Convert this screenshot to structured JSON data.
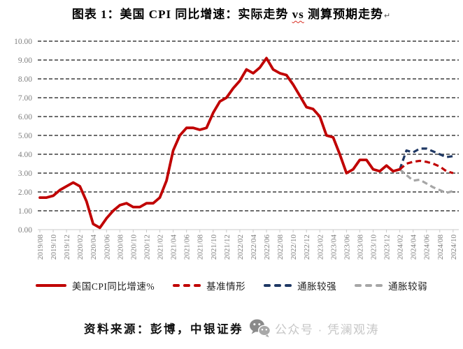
{
  "title": {
    "prefix": "图表 1：美国 CPI 同比增速：实际走势 ",
    "vs_word": "vs",
    "suffix": " 测算预期走势",
    "paragraph_mark": "↵"
  },
  "chart_data": {
    "type": "line",
    "x_start": "2019/08",
    "x_interval": "monthly",
    "x_ticks": [
      "2019/08",
      "2019/10",
      "2019/12",
      "2020/02",
      "2020/04",
      "2020/06",
      "2020/08",
      "2020/10",
      "2020/12",
      "2021/02",
      "2021/04",
      "2021/06",
      "2021/08",
      "2021/10",
      "2021/12",
      "2022/02",
      "2022/04",
      "2022/06",
      "2022/08",
      "2022/10",
      "2022/12",
      "2023/02",
      "2023/04",
      "2023/06",
      "2023/08",
      "2023/10",
      "2023/12",
      "2024/02",
      "2024/04",
      "2024/06",
      "2024/08",
      "2024/10"
    ],
    "y_ticks": [
      "0.00",
      "1.00",
      "2.00",
      "3.00",
      "4.00",
      "5.00",
      "6.00",
      "7.00",
      "8.00",
      "9.00",
      "10.00"
    ],
    "ylim": [
      0,
      10
    ],
    "grid": "dashed-horizontal",
    "series": [
      {
        "name": "美国CPI同比增速%",
        "color": "#c00000",
        "style": "solid",
        "start_month_index": 0,
        "values": [
          1.7,
          1.7,
          1.8,
          2.1,
          2.3,
          2.5,
          2.3,
          1.5,
          0.3,
          0.1,
          0.6,
          1.0,
          1.3,
          1.4,
          1.2,
          1.2,
          1.4,
          1.4,
          1.7,
          2.6,
          4.2,
          5.0,
          5.4,
          5.4,
          5.3,
          5.4,
          6.2,
          6.8,
          7.0,
          7.5,
          7.9,
          8.5,
          8.3,
          8.6,
          9.1,
          8.5,
          8.3,
          8.2,
          7.7,
          7.1,
          6.5,
          6.4,
          6.0,
          5.0,
          4.9,
          4.0,
          3.0,
          3.2,
          3.7,
          3.7,
          3.2,
          3.1,
          3.4,
          3.1,
          3.2
        ]
      },
      {
        "name": "基准情形",
        "color": "#c00000",
        "style": "dashed",
        "start_month_index": 54,
        "values": [
          3.2,
          3.5,
          3.6,
          3.65,
          3.6,
          3.5,
          3.35,
          3.1,
          3.0
        ]
      },
      {
        "name": "通胀较强",
        "color": "#1f3864",
        "style": "dashed",
        "start_month_index": 54,
        "values": [
          3.2,
          4.2,
          4.1,
          4.3,
          4.3,
          4.15,
          4.0,
          3.85,
          3.9
        ]
      },
      {
        "name": "通胀较弱",
        "color": "#a6a6a6",
        "style": "dashed",
        "start_month_index": 54,
        "values": [
          3.2,
          2.9,
          2.6,
          2.65,
          2.45,
          2.25,
          2.1,
          1.95,
          2.05
        ]
      }
    ]
  },
  "legend": {
    "items": [
      {
        "label": "美国CPI同比增速%",
        "color": "#c00000",
        "style": "solid"
      },
      {
        "label": "基准情形",
        "color": "#c00000",
        "style": "dashed"
      },
      {
        "label": "通胀较强",
        "color": "#1f3864",
        "style": "dashed"
      },
      {
        "label": "通胀较弱",
        "color": "#a6a6a6",
        "style": "dashed"
      }
    ]
  },
  "source": {
    "text": "资料来源：彭博，中银证券"
  },
  "watermark": {
    "text": "公众号 · 凭澜观涛"
  },
  "colors": {
    "actual_red": "#c00000",
    "strong_inflation_blue": "#1f3864",
    "weak_inflation_gray": "#a6a6a6",
    "gridline": "#3d3d3d",
    "axis_line": "#c8c8c8",
    "tick_text": "#808080",
    "watermark_gray": "#c6c6c6"
  }
}
